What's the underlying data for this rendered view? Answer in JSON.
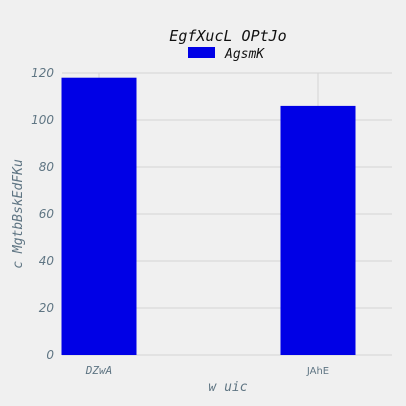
{
  "chart_data": {
    "type": "bar",
    "title": "EgfXucL OPtJo",
    "xlabel": "w uic",
    "ylabel": "c MgtbBskEdFKu",
    "categories": [
      "DZwA",
      "JAhE"
    ],
    "series": [
      {
        "name": "AgsmK",
        "values": [
          118,
          106
        ],
        "color": "#0000e6"
      }
    ],
    "ylim": [
      0,
      120
    ],
    "yticks": [
      0,
      20,
      40,
      60,
      80,
      100,
      120
    ],
    "grid": true,
    "legend_position": "top-center"
  },
  "colors": {
    "background": "#f0f0f0",
    "grid": "#d4d4d4",
    "tick_text": "#5f7583"
  }
}
